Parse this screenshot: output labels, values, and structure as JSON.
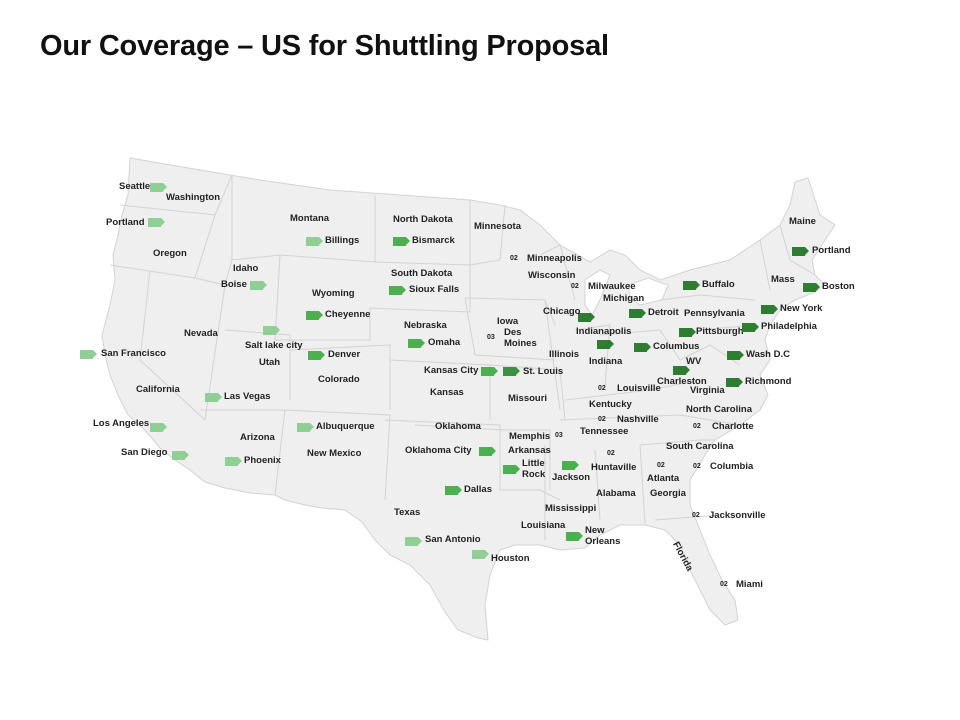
{
  "title": "Our Coverage – US for Shuttling Proposal",
  "colors": {
    "land": "#efefef",
    "border": "#d3d3d3",
    "tier01": "#2e7d32",
    "tier03": "#3f8f46",
    "tier04": "#4caf50",
    "tier05": "#8fcf95",
    "tier02": "#ffffff"
  },
  "states": [
    "Washington",
    "Oregon",
    "Montana",
    "Idaho",
    "Wyoming",
    "North Dakota",
    "South Dakota",
    "Nebraska",
    "Minnesota",
    "Iowa",
    "Wisconsin",
    "Michigan",
    "Illinois",
    "Indiana",
    "Nevada",
    "Utah",
    "Colorado",
    "Kansas",
    "Missouri",
    "California",
    "Arizona",
    "New Mexico",
    "Oklahoma",
    "Arkansas",
    "Tennessee",
    "Kentucky",
    "Texas",
    "Louisiana",
    "Mississippi",
    "Alabama",
    "Georgia",
    "Florida",
    "South Carolina",
    "North Carolina",
    "Virginia",
    "WV",
    "Pennsylvania",
    "Maine",
    "Mass"
  ],
  "cities": [
    {
      "name": "Seattle",
      "badge": "05"
    },
    {
      "name": "Portland",
      "badge": "05"
    },
    {
      "name": "Boise",
      "badge": "05"
    },
    {
      "name": "Billings",
      "badge": "05"
    },
    {
      "name": "Bismarck",
      "badge": "04"
    },
    {
      "name": "Sioux Falls",
      "badge": "04"
    },
    {
      "name": "Cheyenne",
      "badge": "04"
    },
    {
      "name": "Omaha",
      "badge": "04"
    },
    {
      "name": "Salt lake city",
      "badge": "05"
    },
    {
      "name": "Denver",
      "badge": "04"
    },
    {
      "name": "San Francisco",
      "badge": "05"
    },
    {
      "name": "Las Vegas",
      "badge": "05"
    },
    {
      "name": "Los Angeles",
      "badge": "05"
    },
    {
      "name": "San Diego",
      "badge": "05"
    },
    {
      "name": "Phoenix",
      "badge": "05"
    },
    {
      "name": "Albuquerque",
      "badge": "05"
    },
    {
      "name": "Kansas City",
      "badge": "04"
    },
    {
      "name": "St. Louis",
      "badge": "03"
    },
    {
      "name": "Des Moines",
      "badge": "03"
    },
    {
      "name": "Minneapolis",
      "badge": "02"
    },
    {
      "name": "Milwaukee",
      "badge": "02"
    },
    {
      "name": "Chicago",
      "badge": "01"
    },
    {
      "name": "Indianapolis",
      "badge": "01"
    },
    {
      "name": "Detroit",
      "badge": "01"
    },
    {
      "name": "Columbus",
      "badge": "01"
    },
    {
      "name": "Buffalo",
      "badge": "01"
    },
    {
      "name": "Pittsburgh",
      "badge": "01"
    },
    {
      "name": "Philadelphia",
      "badge": "01"
    },
    {
      "name": "New York",
      "badge": "01"
    },
    {
      "name": "Boston",
      "badge": "01"
    },
    {
      "name": "Portland",
      "badge": "01"
    },
    {
      "name": "Wash D.C",
      "badge": "01"
    },
    {
      "name": "Richmond",
      "badge": "01"
    },
    {
      "name": "Charleston",
      "badge": "01"
    },
    {
      "name": "Louisville",
      "badge": "02"
    },
    {
      "name": "Nashville",
      "badge": "02"
    },
    {
      "name": "Memphis",
      "badge": "03"
    },
    {
      "name": "Little Rock",
      "badge": "04"
    },
    {
      "name": "Oklahoma City",
      "badge": "04"
    },
    {
      "name": "Dallas",
      "badge": "04"
    },
    {
      "name": "San Antonio",
      "badge": "05"
    },
    {
      "name": "Houston",
      "badge": "05"
    },
    {
      "name": "Jackson",
      "badge": "04"
    },
    {
      "name": "New Orleans",
      "badge": "04"
    },
    {
      "name": "Huntaville",
      "badge": "02"
    },
    {
      "name": "Atlanta",
      "badge": "02"
    },
    {
      "name": "Columbia",
      "badge": "02"
    },
    {
      "name": "Charlotte",
      "badge": "02"
    },
    {
      "name": "Jacksonville",
      "badge": "02"
    },
    {
      "name": "Miami",
      "badge": "02"
    }
  ]
}
